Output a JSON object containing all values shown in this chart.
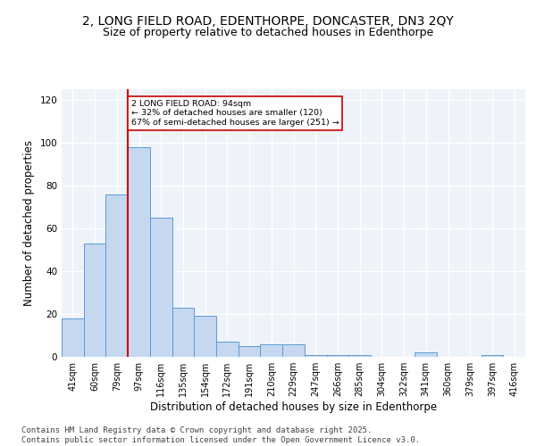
{
  "title_line1": "2, LONG FIELD ROAD, EDENTHORPE, DONCASTER, DN3 2QY",
  "title_line2": "Size of property relative to detached houses in Edenthorpe",
  "xlabel": "Distribution of detached houses by size in Edenthorpe",
  "ylabel": "Number of detached properties",
  "categories": [
    "41sqm",
    "60sqm",
    "79sqm",
    "97sqm",
    "116sqm",
    "135sqm",
    "154sqm",
    "172sqm",
    "191sqm",
    "210sqm",
    "229sqm",
    "247sqm",
    "266sqm",
    "285sqm",
    "304sqm",
    "322sqm",
    "341sqm",
    "360sqm",
    "379sqm",
    "397sqm",
    "416sqm"
  ],
  "values": [
    18,
    53,
    76,
    98,
    65,
    23,
    19,
    7,
    5,
    6,
    6,
    1,
    1,
    1,
    0,
    0,
    2,
    0,
    0,
    1,
    0
  ],
  "bar_color": "#c5d8f0",
  "bar_edge_color": "#5b9bd5",
  "red_line_index": 3,
  "red_line_color": "#cc0000",
  "annotation_text": "2 LONG FIELD ROAD: 94sqm\n← 32% of detached houses are smaller (120)\n67% of semi-detached houses are larger (251) →",
  "annotation_box_color": "white",
  "annotation_box_edge": "#cc0000",
  "ylim": [
    0,
    125
  ],
  "yticks": [
    0,
    20,
    40,
    60,
    80,
    100,
    120
  ],
  "background_color": "#eef3f9",
  "footer_text": "Contains HM Land Registry data © Crown copyright and database right 2025.\nContains public sector information licensed under the Open Government Licence v3.0.",
  "title_fontsize": 10,
  "subtitle_fontsize": 9,
  "tick_fontsize": 7,
  "label_fontsize": 8.5,
  "footer_fontsize": 6.5
}
